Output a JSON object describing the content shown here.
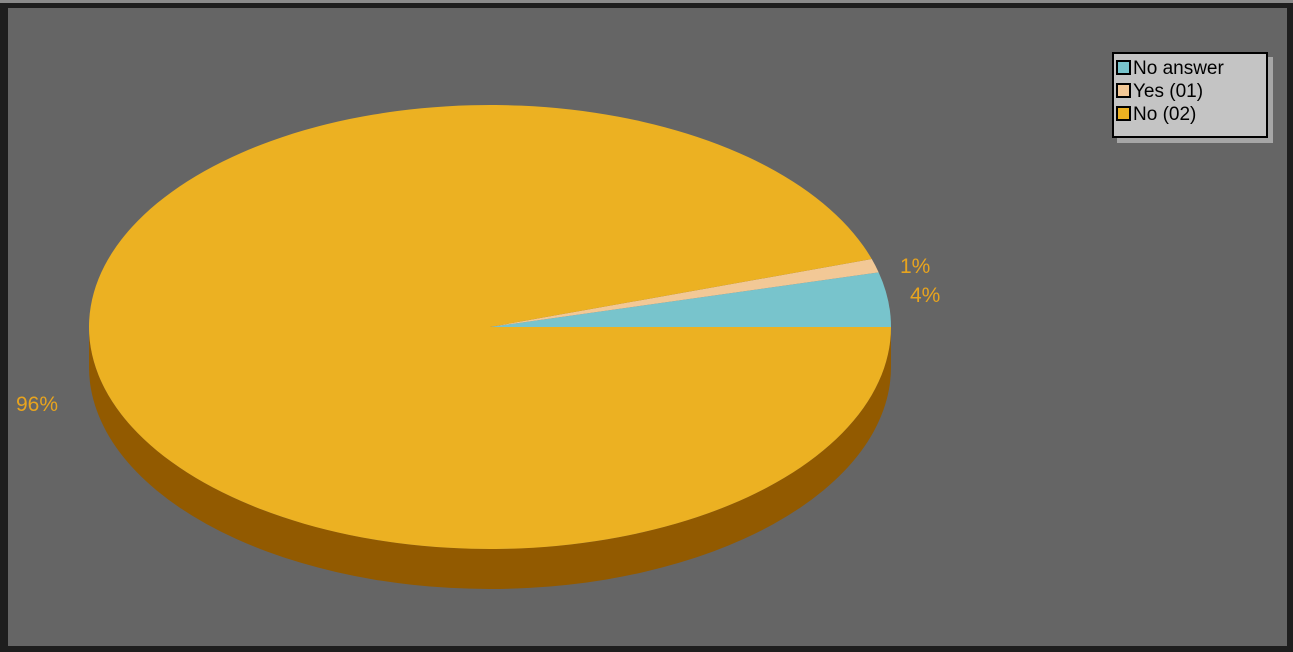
{
  "colors": {
    "no_answer": "#78c4cc",
    "yes_01": "#f2c896",
    "no_02": "#ecb122",
    "no_02_side": "#925a00",
    "label_text": "#e8a41e",
    "background": "#656565"
  },
  "legend": {
    "items": [
      {
        "label": "No answer",
        "color": "#78c4cc"
      },
      {
        "label": "Yes (01)",
        "color": "#f2c896"
      },
      {
        "label": "No (02)",
        "color": "#ecb122"
      }
    ]
  },
  "chart_data": {
    "type": "pie",
    "title": "",
    "style": "3d",
    "legend_position": "top-right",
    "categories": [
      "No answer",
      "Yes (01)",
      "No (02)"
    ],
    "values": [
      4,
      1,
      96
    ],
    "value_labels": [
      "4%",
      "1%",
      "96%"
    ]
  }
}
